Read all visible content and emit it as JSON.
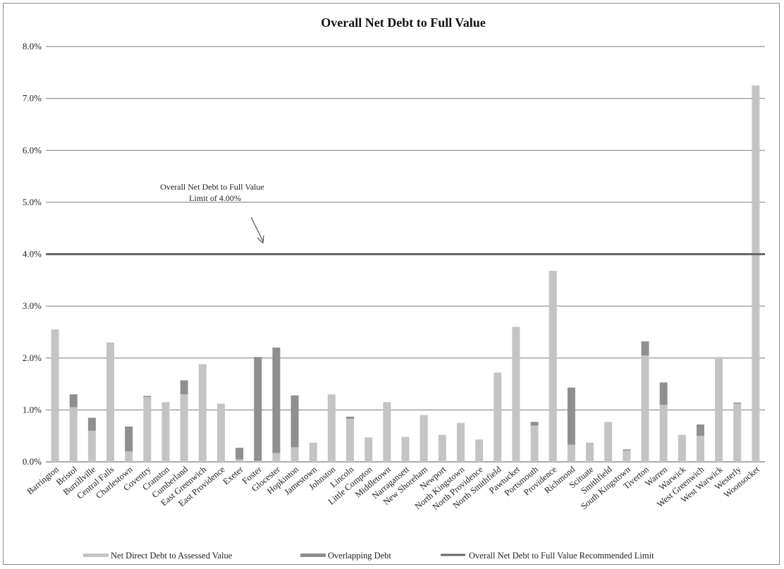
{
  "chart_data": {
    "type": "bar",
    "stacked": true,
    "title": "Overall Net Debt to Full Value",
    "ylim": [
      0,
      8
    ],
    "y_ticks": [
      "0.0%",
      "1.0%",
      "2.0%",
      "3.0%",
      "4.0%",
      "5.0%",
      "6.0%",
      "7.0%",
      "8.0%"
    ],
    "grid": true,
    "legend_position": "bottom",
    "categories": [
      "Barrington",
      "Bristol",
      "Burrillville",
      "Central Falls",
      "Charlestown",
      "Coventry",
      "Cranston",
      "Cumberland",
      "East Greenwich",
      "East Providence",
      "Exeter",
      "Foster",
      "Glocester",
      "Hopkinton",
      "Jamestown",
      "Johnston",
      "Lincoln",
      "Little Compton",
      "Middletown",
      "Narragansett",
      "New Shoreham",
      "Newport",
      "North Kingstown",
      "North Providence",
      "North Smithfield",
      "Pawtucket",
      "Portsmouth",
      "Providence",
      "Richmond",
      "Scituate",
      "Smithfield",
      "South Kingstown",
      "Tiverton",
      "Warren",
      "Warwick",
      "West Greenwich",
      "West Warwick",
      "Westerly",
      "Woonsocket"
    ],
    "series": [
      {
        "name": "Net Direct Debt to Assessed Value",
        "color": "#c4c4c4",
        "values": [
          2.55,
          1.05,
          0.6,
          2.3,
          0.2,
          1.25,
          1.15,
          1.3,
          1.88,
          1.12,
          0.05,
          0.02,
          0.17,
          0.28,
          0.37,
          1.3,
          0.83,
          0.47,
          1.15,
          0.48,
          0.9,
          0.52,
          0.75,
          0.43,
          1.72,
          2.6,
          0.7,
          3.68,
          0.33,
          0.37,
          0.77,
          0.22,
          2.05,
          1.1,
          0.52,
          0.5,
          2.02,
          1.12,
          7.25
        ]
      },
      {
        "name": "Overlapping Debt",
        "color": "#8f8f8f",
        "values": [
          0,
          0.25,
          0.25,
          0,
          0.48,
          0.02,
          0,
          0.27,
          0,
          0,
          0.22,
          2.0,
          2.03,
          1.0,
          0,
          0,
          0.04,
          0,
          0,
          0,
          0,
          0,
          0,
          0,
          0,
          0,
          0.07,
          0,
          1.1,
          0,
          0,
          0.02,
          0.27,
          0.43,
          0,
          0.22,
          0,
          0.02,
          0
        ]
      }
    ],
    "reference_line": {
      "name": "Overall Net Debt to Full Value Recommended Limit",
      "value": 4.0,
      "color": "#666666"
    },
    "annotation": {
      "line1": "Overall Net Debt to Full Value",
      "line2": "Limit  of 4.00%"
    }
  }
}
